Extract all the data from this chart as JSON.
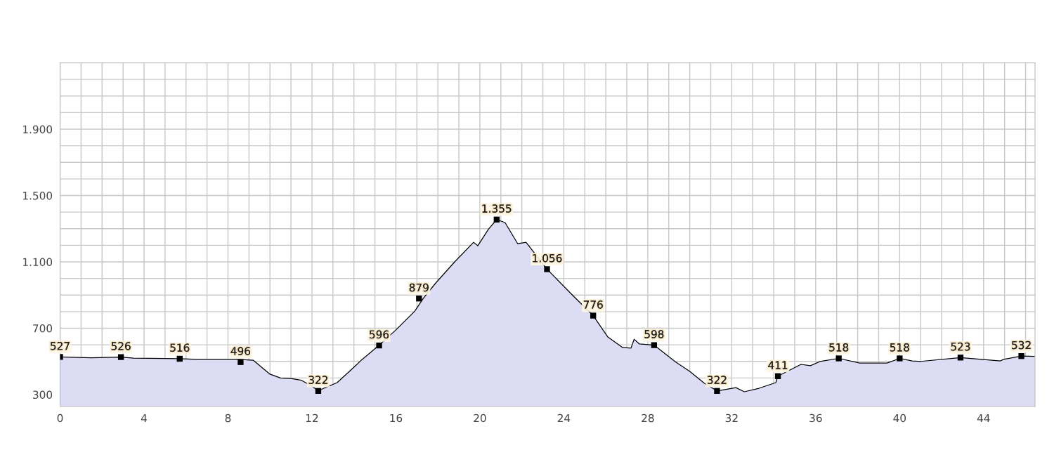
{
  "chart_data": {
    "type": "area",
    "xlim": [
      0,
      46.45
    ],
    "xticks": [
      0,
      4,
      8,
      12,
      16,
      20,
      24,
      28,
      32,
      36,
      40,
      44
    ],
    "ylim": [
      228,
      2300
    ],
    "yticks": [
      300,
      700,
      {
        "value": 1100,
        "label": "1.100"
      },
      {
        "value": 1500,
        "label": "1.500"
      },
      {
        "value": 1900,
        "label": "1.900"
      }
    ],
    "grid": true,
    "series": [
      {
        "color": "#dcdcf5",
        "x": [
          0,
          0.5,
          1.5,
          2.9,
          3.5,
          5.7,
          6.5,
          8.5,
          9.2,
          10,
          10.5,
          11,
          11.5,
          12,
          12.3,
          12.6,
          13.2,
          14.0,
          14.35,
          15.15,
          16.0,
          16.9,
          17.3,
          17.9,
          18.8,
          19.7,
          19.9,
          20.4,
          20.8,
          21.2,
          21.8,
          22.2,
          23.2,
          24.4,
          25.4,
          26.1,
          26.8,
          27.2,
          27.35,
          27.6,
          28.3,
          29.3,
          30.0,
          30.7,
          31.3,
          32.2,
          32.6,
          33.3,
          34.1,
          34.2,
          35.3,
          35.75,
          36.2,
          37.1,
          38.1,
          39.4,
          40.0,
          40.6,
          41.0,
          42.9,
          44.8,
          44.95,
          45.8,
          46.45
        ],
        "values": [
          527,
          525,
          522,
          526,
          520,
          516,
          512,
          512,
          507,
          423,
          400,
          397,
          386,
          351,
          322,
          340,
          372,
          465,
          507,
          592,
          690,
          803,
          879,
          973,
          1100,
          1218,
          1197,
          1295,
          1355,
          1337,
          1210,
          1218,
          1056,
          901,
          776,
          647,
          584,
          580,
          634,
          605,
          598,
          499,
          440,
          368,
          322,
          342,
          317,
          338,
          372,
          411,
          482,
          474,
          499,
          518,
          490,
          490,
          518,
          503,
          500,
          523,
          503,
          512,
          532,
          530
        ]
      },
      {
        "type": "scatter",
        "color": "#000000",
        "marker": "square",
        "x": [
          0,
          2.9,
          5.7,
          8.6,
          12.3,
          15.2,
          17.1,
          20.8,
          23.2,
          25.4,
          28.3,
          31.3,
          34.2,
          37.1,
          40.0,
          42.9,
          45.8
        ],
        "values": [
          527,
          526,
          516,
          496,
          322,
          596,
          879,
          1355,
          1056,
          776,
          598,
          322,
          411,
          518,
          518,
          523,
          532
        ],
        "value_labels": [
          "527",
          "526",
          "516",
          "496",
          "322",
          "596",
          "879",
          "1.355",
          "1.056",
          "776",
          "598",
          "322",
          "411",
          "518",
          "518",
          "523",
          "532"
        ]
      }
    ]
  }
}
